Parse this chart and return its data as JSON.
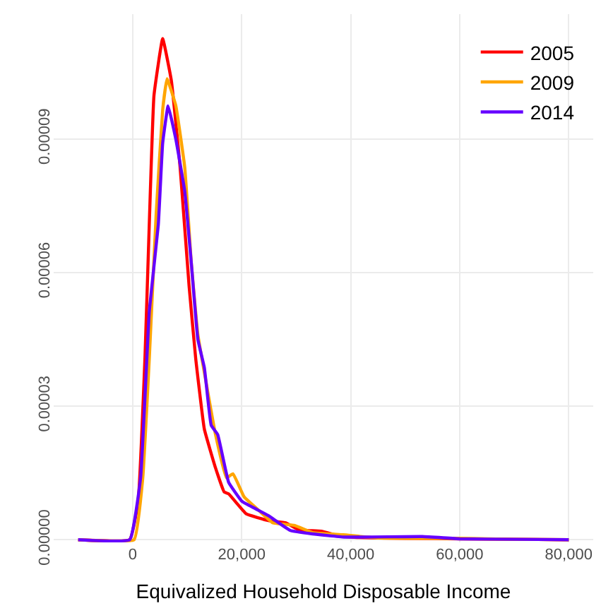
{
  "chart_data": {
    "type": "line",
    "xlabel": "Equivalized Household Disposable Income",
    "xlim": [
      -14500,
      84500
    ],
    "ylim": [
      -6e-07,
      0.000118
    ],
    "xticks": [
      0,
      {
        "value": 20000,
        "label": "20,000"
      },
      {
        "value": 40000,
        "label": "40,000"
      },
      {
        "value": 60000,
        "label": "60,000"
      },
      {
        "value": 80000,
        "label": "80,000"
      }
    ],
    "yticks": [
      {
        "value": 0,
        "label": "0.00000"
      },
      {
        "value": 3e-05,
        "label": "0.00003"
      },
      {
        "value": 6e-05,
        "label": "0.00006"
      },
      {
        "value": 9e-05,
        "label": "0.00009"
      }
    ],
    "grid": true,
    "legend": "top right",
    "marker": "none",
    "line_style": "solid",
    "series": [
      {
        "name": "2005",
        "color": "#ff0000",
        "x": [
          -10000,
          -550,
          1000,
          2250,
          3100,
          3900,
          5500,
          7100,
          8700,
          10350,
          11550,
          13150,
          15200,
          16800,
          17600,
          20850,
          24900,
          28100,
          30550,
          34600,
          37800,
          41200,
          50000,
          60000,
          70000,
          80000
        ],
        "values": [
          0,
          0,
          8.6e-06,
          4.08e-05,
          7.3e-05,
          9.97e-05,
          0.0001125,
          0.000103,
          8.36e-05,
          5.69e-05,
          4.08e-05,
          2.48e-05,
          1.61e-05,
          1.07e-05,
          1.03e-05,
          5.8e-06,
          4.3e-06,
          3.8e-06,
          2.2e-06,
          1.9e-06,
          9e-07,
          5e-07,
          3e-07,
          2e-07,
          1e-07,
          0
        ]
      },
      {
        "name": "2009",
        "color": "#ffa500",
        "x": [
          -10000,
          250,
          1850,
          3050,
          4300,
          5500,
          6300,
          7900,
          9550,
          10750,
          11950,
          13600,
          15200,
          17200,
          18400,
          20450,
          23300,
          25700,
          29750,
          33000,
          38600,
          45000,
          60000,
          70000,
          80000
        ],
        "values": [
          0,
          0,
          1.39e-05,
          4.08e-05,
          7.3e-05,
          9.65e-05,
          0.0001035,
          9.75e-05,
          8.36e-05,
          6.22e-05,
          4.61e-05,
          3.44e-05,
          2.36e-05,
          1.39e-05,
          1.48e-05,
          9.6e-06,
          6.4e-06,
          3.8e-06,
          3.2e-06,
          1.6e-06,
          1.1e-06,
          4e-07,
          3e-07,
          1e-07,
          0
        ]
      },
      {
        "name": "2014",
        "color": "#6600ff",
        "x": [
          -10000,
          -550,
          1450,
          3050,
          4700,
          5500,
          6500,
          7900,
          9550,
          10750,
          11950,
          13150,
          14400,
          15600,
          17600,
          20050,
          22450,
          24900,
          28900,
          33000,
          38800,
          53150,
          60000,
          70000,
          80000
        ],
        "values": [
          0,
          0,
          1.39e-05,
          5.14e-05,
          7.07e-05,
          8.9e-05,
          9.74e-05,
          9e-05,
          7.82e-05,
          6.22e-05,
          4.5e-05,
          3.86e-05,
          2.57e-05,
          2.36e-05,
          1.29e-05,
          8.6e-06,
          7e-06,
          5.4e-06,
          2.1e-06,
          1.3e-06,
          6e-07,
          7e-07,
          2e-07,
          1e-07,
          0
        ]
      }
    ]
  }
}
